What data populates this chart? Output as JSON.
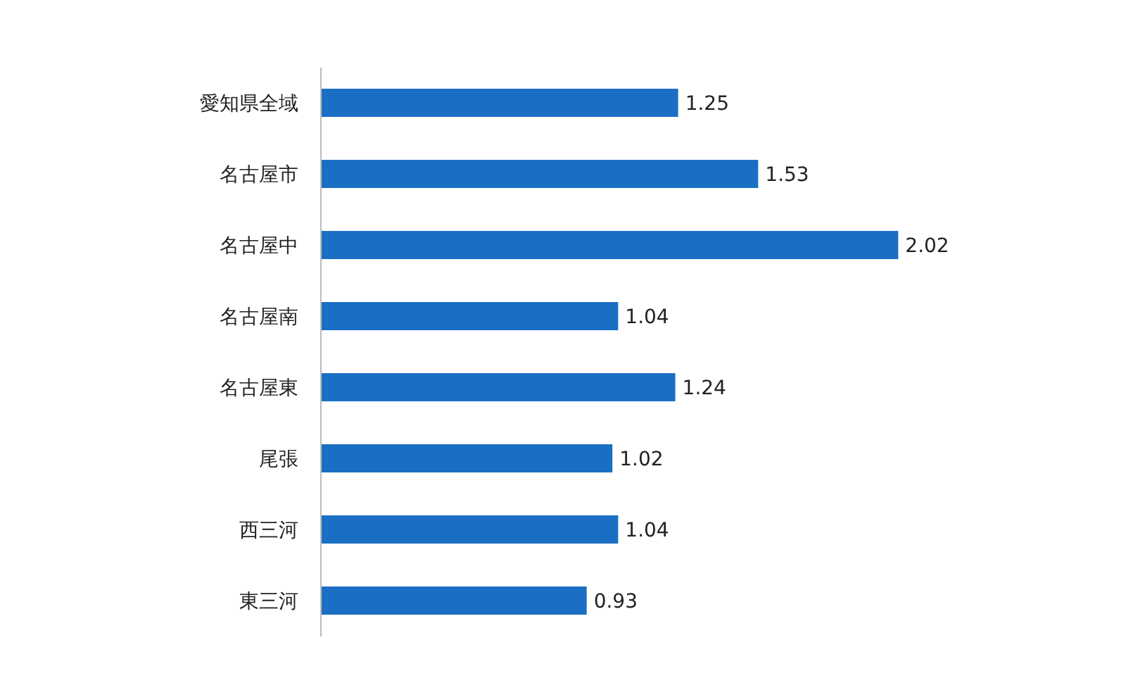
{
  "chart_data": {
    "type": "bar",
    "orientation": "horizontal",
    "categories": [
      "愛知県全域",
      "名古屋市",
      "名古屋中",
      "名古屋南",
      "名古屋東",
      "尾張",
      "西三河",
      "東三河"
    ],
    "values": [
      1.25,
      1.53,
      2.02,
      1.04,
      1.24,
      1.02,
      1.04,
      0.93
    ],
    "color": "#1a6fc4",
    "data_labels": true,
    "tick_labels": "y"
  }
}
